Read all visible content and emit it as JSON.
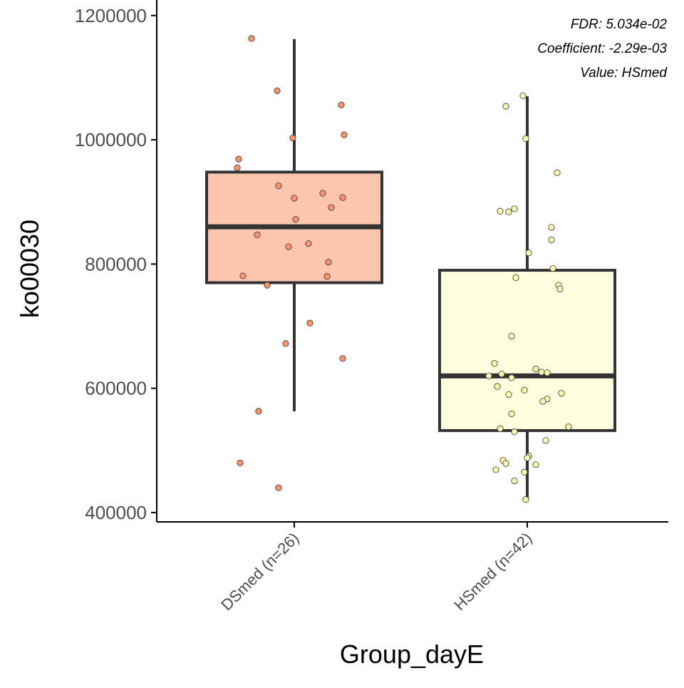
{
  "chart_data": {
    "type": "box",
    "xlabel": "Group_dayE",
    "ylabel": "ko00030",
    "ylim": [
      385000,
      1225000
    ],
    "yticks": [
      400000,
      600000,
      800000,
      1000000,
      1200000
    ],
    "ytick_labels": [
      "400000",
      "600000",
      "800000",
      "1000000",
      "1200000"
    ],
    "categories": [
      "DSmed (n=26)",
      "HSmed (n=42)"
    ],
    "annotations": [
      "FDR: 5.034e-02",
      "Coefficient: -2.29e-03",
      "Value: HSmed"
    ],
    "colors": {
      "axis": "#000000",
      "box_outline": "#333333",
      "point_outline": "#333333"
    },
    "series": [
      {
        "name": "DSmed (n=26)",
        "fill": "#fcc5ae",
        "point_fill": "#f9956e",
        "box": {
          "q1": 770000,
          "median": 860000,
          "q3": 948000,
          "whisker_low": 563000,
          "whisker_high": 1162000
        },
        "points": [
          {
            "jitter": -0.3,
            "value": 1163000
          },
          {
            "jitter": -0.12,
            "value": 1079000
          },
          {
            "jitter": 0.33,
            "value": 1056000
          },
          {
            "jitter": 0.35,
            "value": 1008000
          },
          {
            "jitter": -0.01,
            "value": 1003000
          },
          {
            "jitter": -0.39,
            "value": 969000
          },
          {
            "jitter": -0.4,
            "value": 955000
          },
          {
            "jitter": -0.11,
            "value": 926000
          },
          {
            "jitter": 0.2,
            "value": 914000
          },
          {
            "jitter": 0.34,
            "value": 907000
          },
          {
            "jitter": 0.0,
            "value": 906000
          },
          {
            "jitter": 0.26,
            "value": 891000
          },
          {
            "jitter": 0.01,
            "value": 872000
          },
          {
            "jitter": -0.26,
            "value": 847000
          },
          {
            "jitter": 0.1,
            "value": 833000
          },
          {
            "jitter": -0.04,
            "value": 828000
          },
          {
            "jitter": 0.24,
            "value": 803000
          },
          {
            "jitter": -0.36,
            "value": 781000
          },
          {
            "jitter": 0.23,
            "value": 780000
          },
          {
            "jitter": -0.19,
            "value": 766000
          },
          {
            "jitter": 0.11,
            "value": 705000
          },
          {
            "jitter": -0.06,
            "value": 672000
          },
          {
            "jitter": 0.34,
            "value": 648000
          },
          {
            "jitter": -0.25,
            "value": 563000
          },
          {
            "jitter": -0.38,
            "value": 480000
          },
          {
            "jitter": -0.11,
            "value": 440000
          }
        ]
      },
      {
        "name": "HSmed (n=42)",
        "fill": "#ffffe0",
        "point_fill": "#faf6b0",
        "box": {
          "q1": 532000,
          "median": 620000,
          "q3": 790000,
          "whisker_low": 420000,
          "whisker_high": 1070000
        },
        "points": [
          {
            "jitter": -0.03,
            "value": 1071000
          },
          {
            "jitter": -0.15,
            "value": 1054000
          },
          {
            "jitter": -0.01,
            "value": 1002000
          },
          {
            "jitter": 0.21,
            "value": 947000
          },
          {
            "jitter": -0.09,
            "value": 889000
          },
          {
            "jitter": -0.19,
            "value": 885000
          },
          {
            "jitter": -0.13,
            "value": 884000
          },
          {
            "jitter": 0.17,
            "value": 859000
          },
          {
            "jitter": 0.17,
            "value": 839000
          },
          {
            "jitter": 0.01,
            "value": 818000
          },
          {
            "jitter": 0.18,
            "value": 793000
          },
          {
            "jitter": -0.08,
            "value": 778000
          },
          {
            "jitter": 0.22,
            "value": 766000
          },
          {
            "jitter": 0.23,
            "value": 760000
          },
          {
            "jitter": -0.11,
            "value": 684000
          },
          {
            "jitter": -0.23,
            "value": 640000
          },
          {
            "jitter": 0.06,
            "value": 631000
          },
          {
            "jitter": 0.1,
            "value": 626000
          },
          {
            "jitter": 0.14,
            "value": 625000
          },
          {
            "jitter": -0.18,
            "value": 623000
          },
          {
            "jitter": -0.27,
            "value": 620000
          },
          {
            "jitter": -0.11,
            "value": 617000
          },
          {
            "jitter": -0.21,
            "value": 603000
          },
          {
            "jitter": -0.02,
            "value": 597000
          },
          {
            "jitter": 0.24,
            "value": 592000
          },
          {
            "jitter": -0.13,
            "value": 590000
          },
          {
            "jitter": 0.14,
            "value": 583000
          },
          {
            "jitter": 0.11,
            "value": 579000
          },
          {
            "jitter": -0.11,
            "value": 559000
          },
          {
            "jitter": 0.29,
            "value": 538000
          },
          {
            "jitter": -0.19,
            "value": 535000
          },
          {
            "jitter": -0.09,
            "value": 530000
          },
          {
            "jitter": 0.13,
            "value": 516000
          },
          {
            "jitter": 0.01,
            "value": 491000
          },
          {
            "jitter": 0.0,
            "value": 488000
          },
          {
            "jitter": -0.17,
            "value": 484000
          },
          {
            "jitter": -0.15,
            "value": 479000
          },
          {
            "jitter": 0.06,
            "value": 477000
          },
          {
            "jitter": -0.22,
            "value": 469000
          },
          {
            "jitter": -0.02,
            "value": 465000
          },
          {
            "jitter": -0.09,
            "value": 451000
          },
          {
            "jitter": -0.01,
            "value": 421000
          }
        ]
      }
    ]
  }
}
